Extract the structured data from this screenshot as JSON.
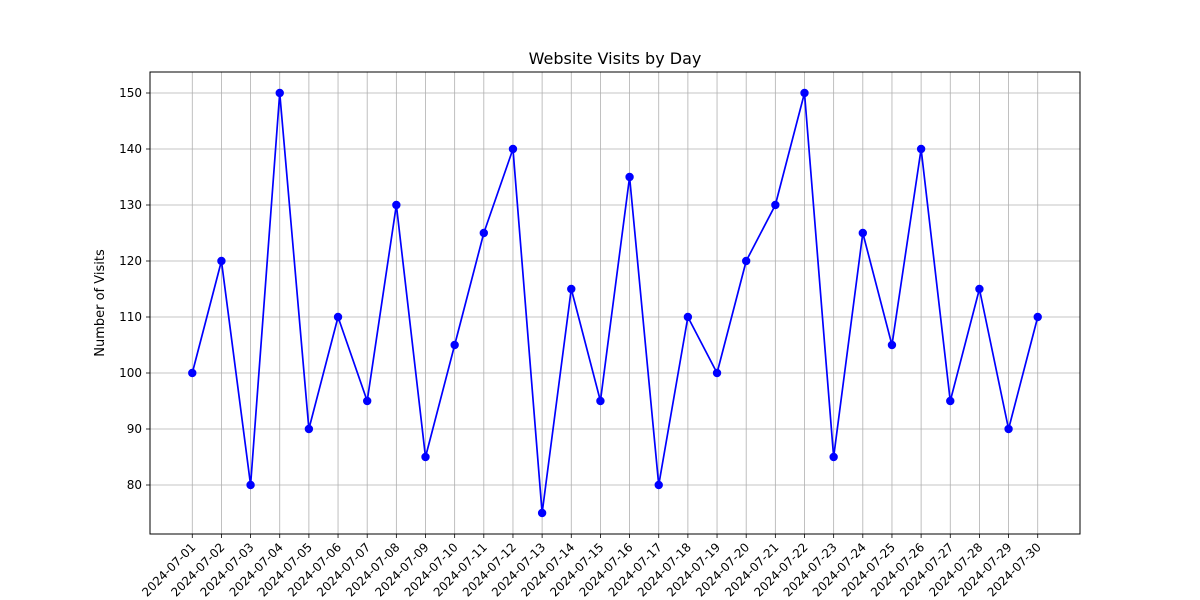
{
  "chart_data": {
    "type": "line",
    "title": "Website Visits by Day",
    "xlabel": "",
    "ylabel": "Number of Visits",
    "ylim": [
      71.25,
      153.75
    ],
    "yticks": [
      80,
      90,
      100,
      110,
      120,
      130,
      140,
      150
    ],
    "grid": true,
    "colors": {
      "line": "#0000ff",
      "marker": "#0000ff",
      "grid": "#b0b0b0"
    },
    "x": [
      "2024-07-01",
      "2024-07-02",
      "2024-07-03",
      "2024-07-04",
      "2024-07-05",
      "2024-07-06",
      "2024-07-07",
      "2024-07-08",
      "2024-07-09",
      "2024-07-10",
      "2024-07-11",
      "2024-07-12",
      "2024-07-13",
      "2024-07-14",
      "2024-07-15",
      "2024-07-16",
      "2024-07-17",
      "2024-07-18",
      "2024-07-19",
      "2024-07-20",
      "2024-07-21",
      "2024-07-22",
      "2024-07-23",
      "2024-07-24",
      "2024-07-25",
      "2024-07-26",
      "2024-07-27",
      "2024-07-28",
      "2024-07-29",
      "2024-07-30"
    ],
    "series": [
      {
        "values": [
          100,
          120,
          80,
          150,
          90,
          110,
          95,
          130,
          85,
          105,
          125,
          140,
          75,
          115,
          95,
          135,
          80,
          110,
          100,
          120,
          130,
          150,
          85,
          125,
          105,
          140,
          95,
          115,
          90,
          110
        ]
      }
    ]
  }
}
